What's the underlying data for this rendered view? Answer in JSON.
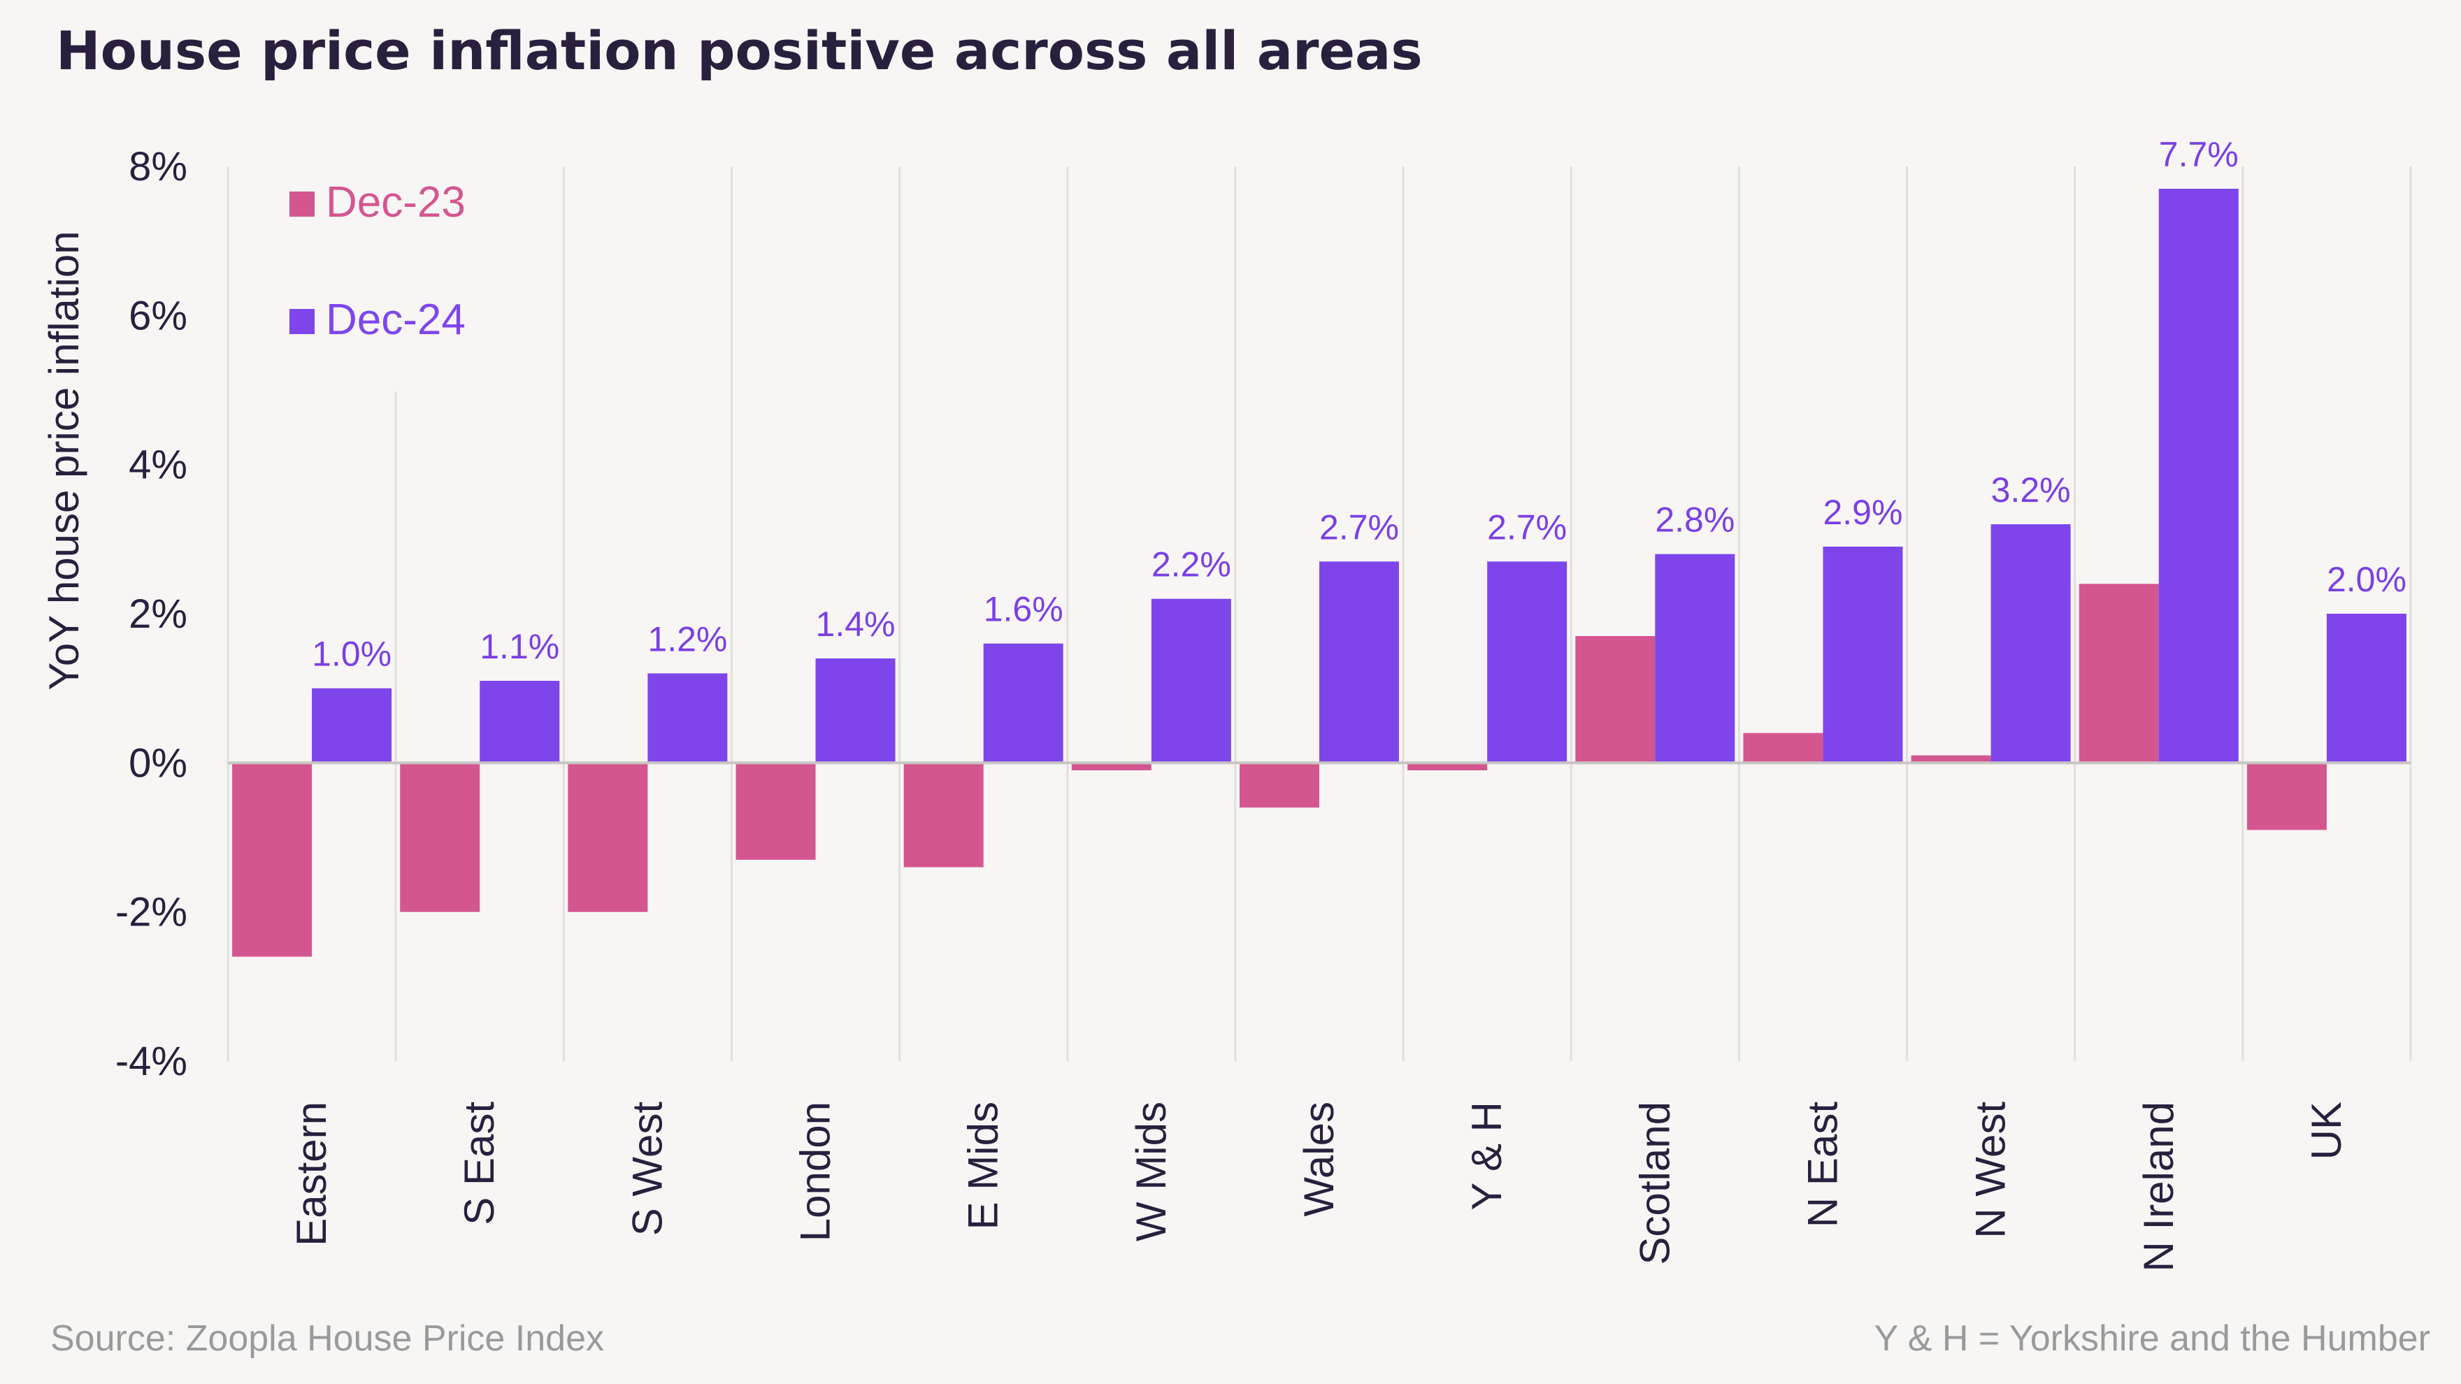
{
  "title": "House price inflation positive across all areas",
  "source": "Source: Zoopla House Price Index",
  "note": "Y & H = Yorkshire and the Humber",
  "colors": {
    "dec23": "#d4568f",
    "dec24": "#7e46ea",
    "label": "#7b3fe4",
    "grid": "#e2e0dd",
    "zero": "#c8c6c4",
    "text": "#2a1f3d"
  },
  "chart_data": {
    "type": "bar",
    "ylabel": "YoY house price inflation",
    "ylim": [
      -4,
      8
    ],
    "yticks": [
      "-4%",
      "-2%",
      "0%",
      "2%",
      "4%",
      "6%",
      "8%"
    ],
    "ytick_values": [
      -4,
      -2,
      0,
      2,
      4,
      6,
      8
    ],
    "legend_position": "top-left",
    "grid": "vertical",
    "categories": [
      "Eastern",
      "S East",
      "S West",
      "London",
      "E Mids",
      "W Mids",
      "Wales",
      "Y & H",
      "Scotland",
      "N East",
      "N West",
      "N Ireland",
      "UK"
    ],
    "series": [
      {
        "name": "Dec-23",
        "values": [
          -2.6,
          -2.0,
          -2.0,
          -1.3,
          -1.4,
          -0.1,
          -0.6,
          -0.1,
          1.7,
          0.4,
          0.1,
          2.4,
          -0.9
        ]
      },
      {
        "name": "Dec-24",
        "values": [
          1.0,
          1.1,
          1.2,
          1.4,
          1.6,
          2.2,
          2.7,
          2.7,
          2.8,
          2.9,
          3.2,
          7.7,
          2.0
        ],
        "labels": [
          "1.0%",
          "1.1%",
          "1.2%",
          "1.4%",
          "1.6%",
          "2.2%",
          "2.7%",
          "2.7%",
          "2.8%",
          "2.9%",
          "3.2%",
          "7.7%",
          "2.0%"
        ]
      }
    ]
  }
}
